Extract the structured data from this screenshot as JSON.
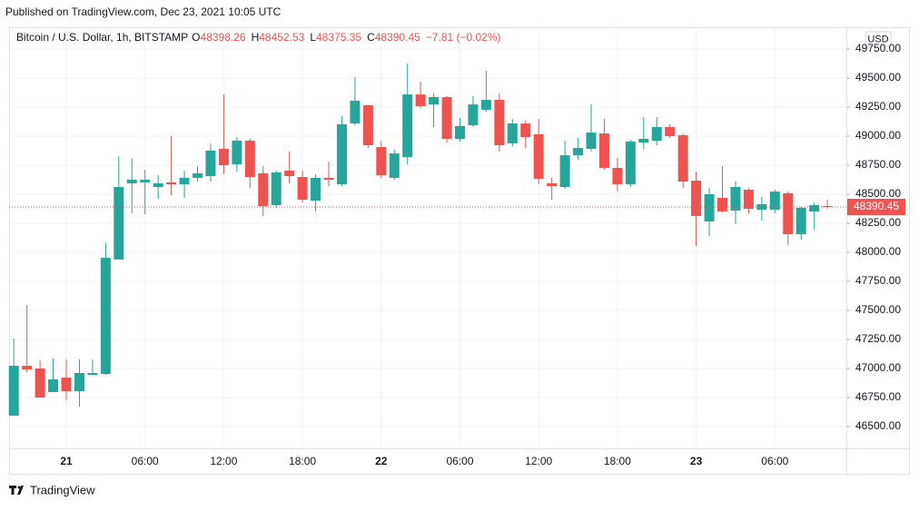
{
  "published": "Published on TradingView.com, Dec 23, 2021 10:05 UTC",
  "chart_data": {
    "type": "candlestick",
    "title": "Bitcoin / U.S. Dollar, 1h, BITSTAMP",
    "ohlc_labels": [
      "O",
      "H",
      "L",
      "C"
    ],
    "change": "−7.81 (−0.02%)",
    "currency": "USD",
    "categories": [
      null,
      null,
      null,
      null,
      "21",
      null,
      null,
      null,
      null,
      null,
      "06:00",
      null,
      null,
      null,
      null,
      null,
      "12:00",
      null,
      null,
      null,
      null,
      null,
      "18:00",
      null,
      null,
      null,
      null,
      null,
      "22",
      null,
      null,
      null,
      null,
      null,
      "06:00",
      null,
      null,
      null,
      null,
      null,
      "12:00",
      null,
      null,
      null,
      null,
      null,
      "18:00",
      null,
      null,
      null,
      null,
      null,
      "23",
      null,
      null,
      null,
      null,
      null,
      "06:00",
      null,
      null,
      null,
      null
    ],
    "open": [
      46594,
      47023,
      47000,
      46797,
      46922,
      46805,
      46945,
      46953,
      47938,
      48594,
      48602,
      48562,
      48602,
      48586,
      48641,
      48656,
      48891,
      48758,
      48961,
      48680,
      48406,
      48703,
      48648,
      48445,
      48641,
      48586,
      49109,
      49266,
      48906,
      48641,
      48820,
      49359,
      49273,
      49336,
      48977,
      49094,
      49227,
      49312,
      48938,
      49109,
      49016,
      48594,
      48562,
      48836,
      48891,
      49023,
      48727,
      48586,
      48945,
      48961,
      49078,
      49008,
      48617,
      48266,
      48469,
      48359,
      48539,
      48367,
      48367,
      48508,
      48156,
      48352,
      48398.26
    ],
    "high": [
      47258,
      47547,
      47070,
      47086,
      47078,
      47078,
      47078,
      48086,
      48828,
      48805,
      48711,
      48664,
      49000,
      48703,
      48742,
      48937,
      49359,
      48992,
      48977,
      48742,
      48703,
      48867,
      48703,
      48672,
      48781,
      49172,
      49508,
      49266,
      48961,
      48883,
      49625,
      49469,
      49367,
      49344,
      49156,
      49344,
      49563,
      49367,
      49148,
      49133,
      49148,
      48641,
      48961,
      48984,
      49273,
      49148,
      48813,
      48969,
      49164,
      49164,
      49102,
      49023,
      48695,
      48555,
      48742,
      48609,
      48555,
      48477,
      48539,
      48523,
      48391,
      48430,
      48452.53
    ],
    "low": [
      46594,
      46969,
      46750,
      46797,
      46727,
      46672,
      46945,
      46945,
      47938,
      48336,
      48328,
      48461,
      48492,
      48469,
      48609,
      48609,
      48672,
      48695,
      48555,
      48312,
      48383,
      48594,
      48430,
      48351,
      48570,
      48570,
      49094,
      48898,
      48641,
      48625,
      48758,
      49242,
      49078,
      48945,
      48953,
      49078,
      49211,
      48867,
      48914,
      48898,
      48586,
      48453,
      48547,
      48797,
      48867,
      48711,
      48523,
      48562,
      48891,
      48922,
      48984,
      48555,
      48055,
      48141,
      48344,
      48242,
      48336,
      48273,
      48336,
      48063,
      48109,
      48195,
      48375.35
    ],
    "close": [
      47023,
      46992,
      46750,
      46906,
      46805,
      46961,
      46961,
      47953,
      48562,
      48625,
      48625,
      48594,
      48586,
      48641,
      48680,
      48875,
      48750,
      48961,
      48648,
      48398,
      48688,
      48656,
      48453,
      48641,
      48625,
      49102,
      49305,
      48922,
      48664,
      48851,
      49359,
      49258,
      49336,
      48977,
      49086,
      49273,
      49312,
      48922,
      49109,
      48992,
      48633,
      48570,
      48836,
      48898,
      49031,
      48727,
      48586,
      48953,
      48977,
      49078,
      49000,
      48609,
      48313,
      48500,
      48352,
      48563,
      48375,
      48414,
      48523,
      48156,
      48383,
      48406,
      48390.45
    ],
    "up_color": "#26a69a",
    "down_color": "#ef5350",
    "ylim": [
      46312.5,
      49921.875
    ],
    "yticks": [
      {
        "value": 46500,
        "label": "46500.00"
      },
      {
        "value": 46750,
        "label": "46750.00"
      },
      {
        "value": 47000,
        "label": "47000.00"
      },
      {
        "value": 47250,
        "label": "47250.00"
      },
      {
        "value": 47500,
        "label": "47500.00"
      },
      {
        "value": 47750,
        "label": "47750.00"
      },
      {
        "value": 48000,
        "label": "48000.00"
      },
      {
        "value": 48250,
        "label": "48250.00"
      },
      {
        "value": 48500,
        "label": "48500.00"
      },
      {
        "value": 48750,
        "label": "48750.00"
      },
      {
        "value": 49000,
        "label": "49000.00"
      },
      {
        "value": 49250,
        "label": "49250.00"
      },
      {
        "value": 49500,
        "label": "49500.00"
      },
      {
        "value": 49750,
        "label": "49750.00"
      }
    ],
    "grid": true,
    "last_price_line": true
  },
  "footer": "TradingView"
}
